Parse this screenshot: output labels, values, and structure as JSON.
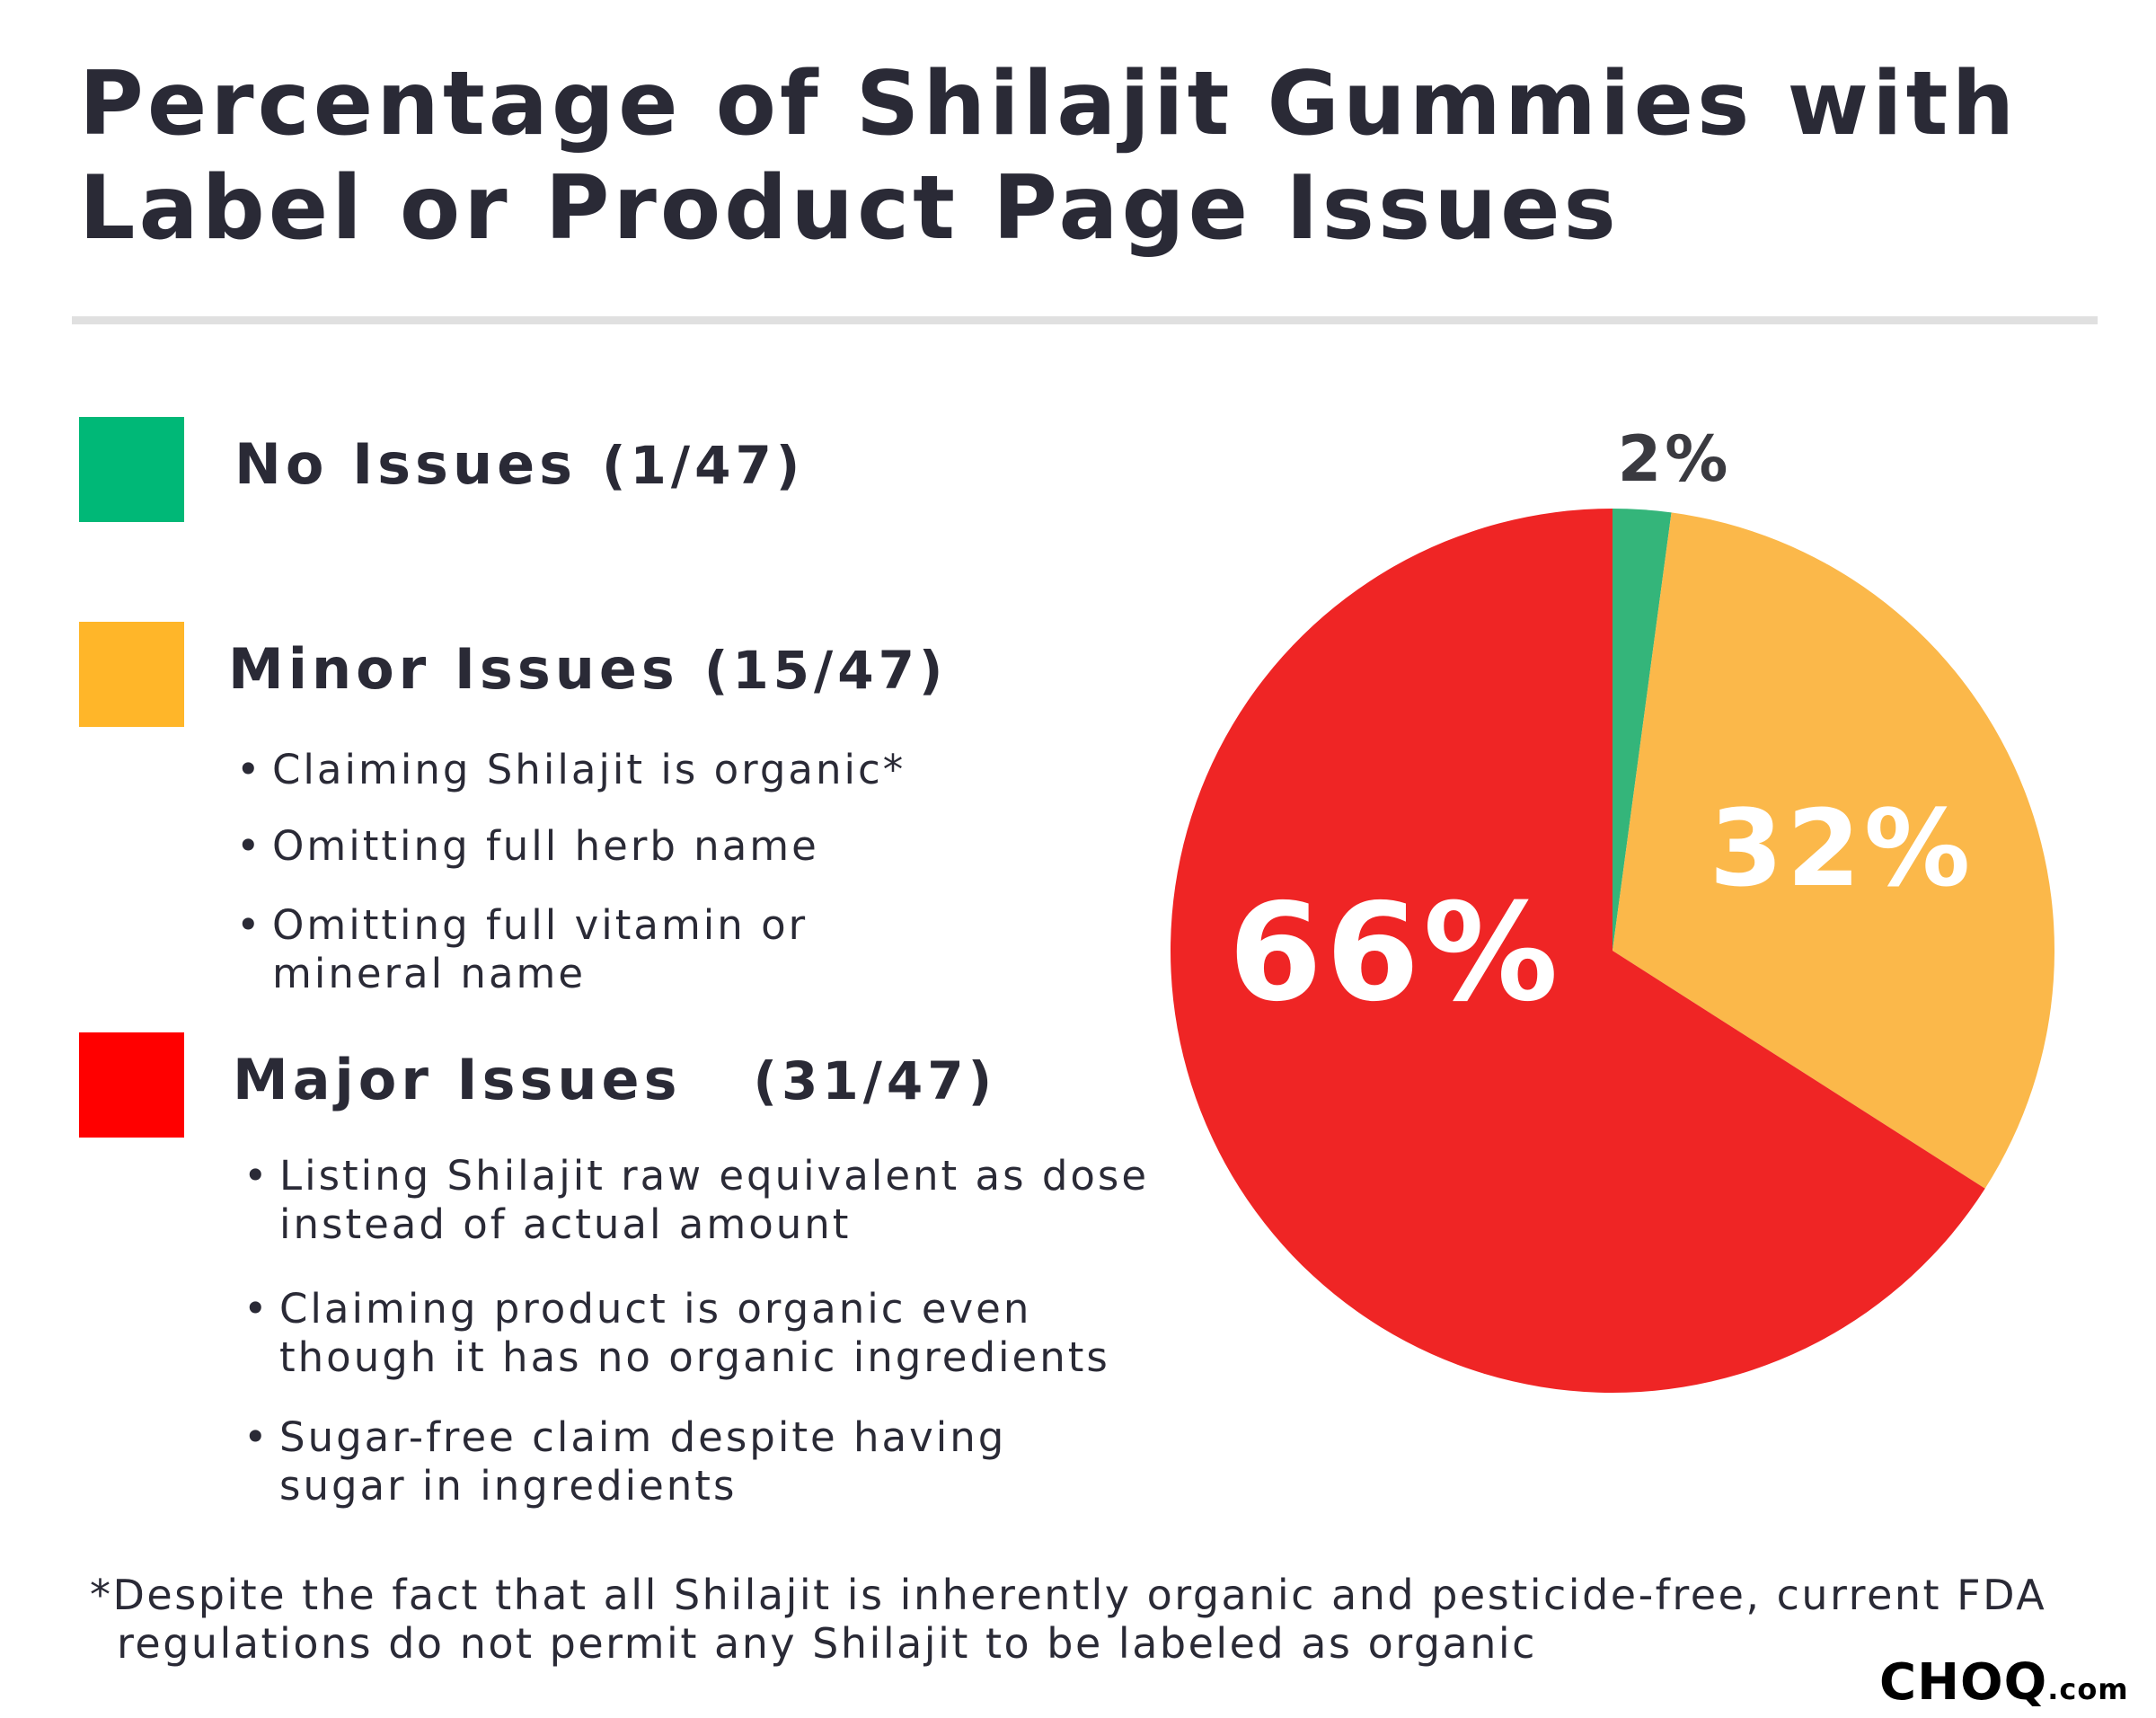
{
  "title": [
    "Percentage of Shilajit Gummies with",
    "Label or Product Page Issues"
  ],
  "legend": [
    {
      "label": "No Issues",
      "count": "(1/47)",
      "color": "#00b877",
      "bullets": []
    },
    {
      "label": "Minor Issues",
      "count": "(15/47)",
      "color": "#ffb629",
      "bullets": [
        "Claiming Shilajit is organic*",
        "Omitting full herb name",
        "Omitting full vitamin or mineral name"
      ]
    },
    {
      "label": "Major Issues",
      "count": "(31/47)",
      "color": "#ff0000",
      "bullets": [
        "Listing Shilajit raw equivalent as dose instead of actual amount",
        "Claiming product is organic even though it has no organic ingredients",
        "Sugar-free claim despite having sugar in ingredients"
      ]
    }
  ],
  "chart_data": {
    "type": "pie",
    "categories": [
      "No Issues",
      "Minor Issues",
      "Major Issues"
    ],
    "values": [
      1,
      15,
      31
    ],
    "labels": [
      "2%",
      "32%",
      "66%"
    ],
    "colors": [
      "#34b57a",
      "#fbb84a",
      "#ef2525"
    ],
    "start": "top",
    "direction": "clockwise"
  },
  "footnote": [
    "*Despite the fact that all Shilajit is inherently organic and pesticide-free, current FDA",
    "regulations do not permit any Shilajit to be labeled as organic"
  ],
  "logo": {
    "main": "CHOQ",
    "suffix": ".com"
  }
}
